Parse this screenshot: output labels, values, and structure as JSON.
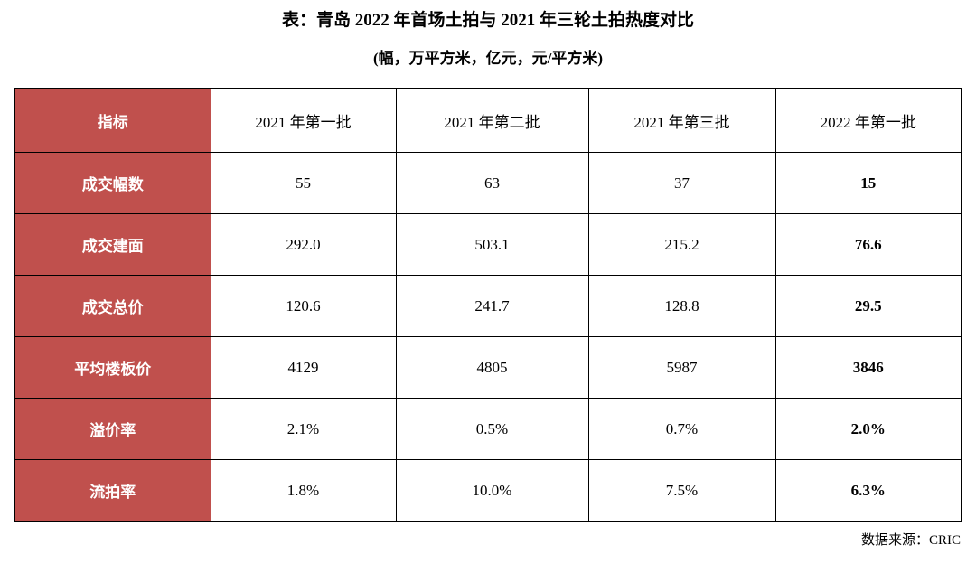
{
  "page": {
    "title": "表：青岛 2022 年首场土拍与 2021 年三轮土拍热度对比",
    "subtitle": "(幅，万平方米，亿元，元/平方米)",
    "source": "数据来源：CRIC"
  },
  "colors": {
    "header_fill": "#C0504D",
    "header_text": "#FFFFFF",
    "border": "#000000",
    "body_text": "#000000",
    "background": "#FFFFFF"
  },
  "chart_data": {
    "type": "table",
    "title": "表：青岛 2022 年首场土拍与 2021 年三轮土拍热度对比",
    "subtitle": "(幅，万平方米，亿元，元/平方米)",
    "source": "数据来源：CRIC",
    "columns": [
      "指标",
      "2021 年第一批",
      "2021 年第二批",
      "2021 年第三批",
      "2022 年第一批"
    ],
    "rows": [
      [
        "成交幅数",
        "55",
        "63",
        "37",
        "15"
      ],
      [
        "成交建面",
        "292.0",
        "503.1",
        "215.2",
        "76.6"
      ],
      [
        "成交总价",
        "120.6",
        "241.7",
        "128.8",
        "29.5"
      ],
      [
        "平均楼板价",
        "4129",
        "4805",
        "5987",
        "3846"
      ],
      [
        "溢价率",
        "2.1%",
        "0.5%",
        "0.7%",
        "2.0%"
      ],
      [
        "流拍率",
        "1.8%",
        "10.0%",
        "7.5%",
        "6.3%"
      ]
    ],
    "emphasis": "last column (2022 年第一批) rendered bold",
    "layout_hint": "label column has red fill with white bold text; black grid lines; thick outer border"
  }
}
